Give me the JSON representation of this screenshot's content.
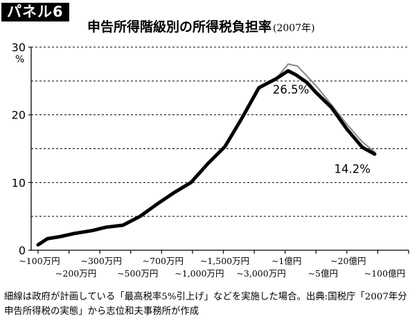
{
  "panel_label": "パネル6",
  "chart_data": {
    "type": "line",
    "title": "申告所得階級別の所得税負担率",
    "subtitle": "(2007年)",
    "ylabel": "%",
    "ylim": [
      0,
      30
    ],
    "yticks": [
      "0",
      "10",
      "20",
      "30"
    ],
    "grid": "horizontal dashed",
    "categories": [
      "~100万円",
      "~200万円",
      "~300万円",
      "~500万円",
      "~700万円",
      "~1,000万円",
      "~1,500万円",
      "~3,000万円",
      "~1億円",
      "~5億円",
      "~20億円",
      "~100億円"
    ],
    "tick_labels_top": [
      "~100万円",
      "~300万円",
      "~700万円",
      "~1,500万円",
      "~1億円",
      "~20億円"
    ],
    "tick_labels_bottom": [
      "~200万円",
      "~500万円",
      "~1,000万円",
      "~3,000万円",
      "~5億円",
      "~100億円"
    ],
    "series": [
      {
        "name": "",
        "style": "thick-black",
        "color": "#000000",
        "x": [
          0,
          0.3,
          0.7,
          1.2,
          1.75,
          2.2,
          2.75,
          3.3,
          3.85,
          4.4,
          4.95,
          5.5,
          6.05,
          6.6,
          7.15,
          7.7,
          8.1,
          8.35,
          8.7,
          9.0,
          9.5,
          10.0,
          10.5,
          10.9
        ],
        "y": [
          0.8,
          1.7,
          2.0,
          2.5,
          2.9,
          3.4,
          3.7,
          5.0,
          6.8,
          8.5,
          10.0,
          12.8,
          15.3,
          19.5,
          24.0,
          25.3,
          26.5,
          25.9,
          24.8,
          23.3,
          21.1,
          17.9,
          15.2,
          14.2
        ]
      },
      {
        "name": "",
        "style": "thin-gray",
        "color": "#8c8c8c",
        "x": [
          7.7,
          8.1,
          8.4,
          9.0,
          9.5,
          10.0,
          10.5,
          10.9
        ],
        "y": [
          25.3,
          27.5,
          27.2,
          24.3,
          21.5,
          18.6,
          16.0,
          14.5
        ]
      }
    ],
    "annotations": [
      {
        "text": "26.5%",
        "x": 8.1,
        "y": 26.5
      },
      {
        "text": "14.2%",
        "x": 10.9,
        "y": 14.2
      }
    ]
  },
  "footnote": "細線は政府が計画している「最高税率5%引上げ」などを実施した場合。出典:国税庁「2007年分　申告所得税の実態」から志位和夫事務所が作成"
}
